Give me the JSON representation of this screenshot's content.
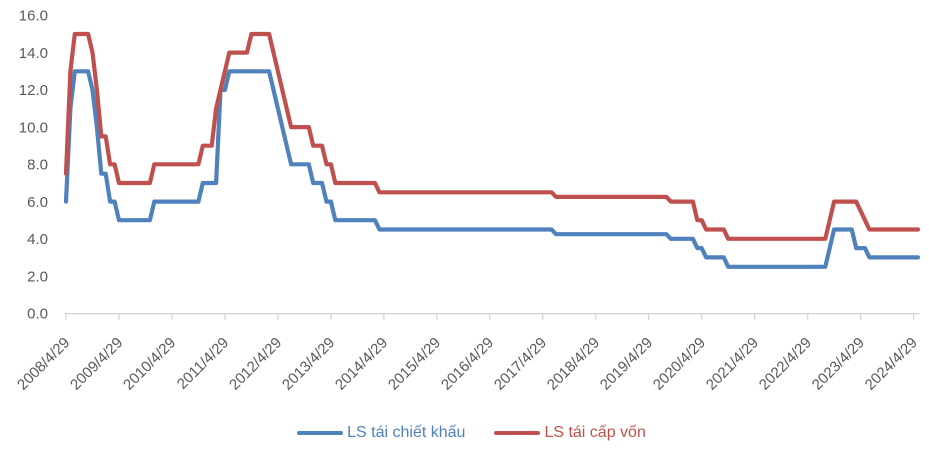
{
  "chart_data": {
    "type": "line",
    "title": "",
    "x_axis": {
      "tick_labels": [
        "2008/4/29",
        "2009/4/29",
        "2010/4/29",
        "2011/4/29",
        "2012/4/29",
        "2013/4/29",
        "2014/4/29",
        "2015/4/29",
        "2016/4/29",
        "2017/4/29",
        "2018/4/29",
        "2019/4/29",
        "2020/4/29",
        "2021/4/29",
        "2022/4/29",
        "2023/4/29",
        "2024/4/29"
      ],
      "points_per_tick": 12,
      "frequency": "monthly",
      "first_point": "2008/4/29",
      "last_point": "2024/5/29"
    },
    "y_axis": {
      "tick_labels": [
        "0.0",
        "2.0",
        "4.0",
        "6.0",
        "8.0",
        "10.0",
        "12.0",
        "14.0",
        "16.0"
      ],
      "min": 0,
      "max": 16
    },
    "grid": false,
    "legend_position": "bottom-center",
    "colors": {
      "axis": "#D6D6D6",
      "text": "#595959",
      "background": "#FFFFFF"
    },
    "series": [
      {
        "name": "LS tái chiết khấu",
        "color": "#4F81BD",
        "values": [
          6,
          11,
          13,
          13,
          13,
          13,
          12,
          10,
          7.5,
          7.5,
          6,
          6,
          5,
          5,
          5,
          5,
          5,
          5,
          5,
          5,
          6,
          6,
          6,
          6,
          6,
          6,
          6,
          6,
          6,
          6,
          6,
          7,
          7,
          7,
          7,
          12,
          12,
          13,
          13,
          13,
          13,
          13,
          13,
          13,
          13,
          13,
          13,
          12,
          11,
          10,
          9,
          8,
          8,
          8,
          8,
          8,
          7,
          7,
          7,
          6,
          6,
          5,
          5,
          5,
          5,
          5,
          5,
          5,
          5,
          5,
          5,
          4.5,
          4.5,
          4.5,
          4.5,
          4.5,
          4.5,
          4.5,
          4.5,
          4.5,
          4.5,
          4.5,
          4.5,
          4.5,
          4.5,
          4.5,
          4.5,
          4.5,
          4.5,
          4.5,
          4.5,
          4.5,
          4.5,
          4.5,
          4.5,
          4.5,
          4.5,
          4.5,
          4.5,
          4.5,
          4.5,
          4.5,
          4.5,
          4.5,
          4.5,
          4.5,
          4.5,
          4.5,
          4.5,
          4.5,
          4.5,
          4.25,
          4.25,
          4.25,
          4.25,
          4.25,
          4.25,
          4.25,
          4.25,
          4.25,
          4.25,
          4.25,
          4.25,
          4.25,
          4.25,
          4.25,
          4.25,
          4.25,
          4.25,
          4.25,
          4.25,
          4.25,
          4.25,
          4.25,
          4.25,
          4.25,
          4.25,
          4,
          4,
          4,
          4,
          4,
          4,
          3.5,
          3.5,
          3,
          3,
          3,
          3,
          3,
          2.5,
          2.5,
          2.5,
          2.5,
          2.5,
          2.5,
          2.5,
          2.5,
          2.5,
          2.5,
          2.5,
          2.5,
          2.5,
          2.5,
          2.5,
          2.5,
          2.5,
          2.5,
          2.5,
          2.5,
          2.5,
          2.5,
          2.5,
          3.5,
          4.5,
          4.5,
          4.5,
          4.5,
          4.5,
          3.5,
          3.5,
          3.5,
          3,
          3,
          3,
          3,
          3,
          3,
          3,
          3,
          3,
          3,
          3,
          3
        ]
      },
      {
        "name": "LS tái cấp vốn",
        "color": "#C0504D",
        "values": [
          7.5,
          13,
          15,
          15,
          15,
          15,
          14,
          12,
          9.5,
          9.5,
          8,
          8,
          7,
          7,
          7,
          7,
          7,
          7,
          7,
          7,
          8,
          8,
          8,
          8,
          8,
          8,
          8,
          8,
          8,
          8,
          8,
          9,
          9,
          9,
          11,
          12,
          13,
          14,
          14,
          14,
          14,
          14,
          15,
          15,
          15,
          15,
          15,
          14,
          13,
          12,
          11,
          10,
          10,
          10,
          10,
          10,
          9,
          9,
          9,
          8,
          8,
          7,
          7,
          7,
          7,
          7,
          7,
          7,
          7,
          7,
          7,
          6.5,
          6.5,
          6.5,
          6.5,
          6.5,
          6.5,
          6.5,
          6.5,
          6.5,
          6.5,
          6.5,
          6.5,
          6.5,
          6.5,
          6.5,
          6.5,
          6.5,
          6.5,
          6.5,
          6.5,
          6.5,
          6.5,
          6.5,
          6.5,
          6.5,
          6.5,
          6.5,
          6.5,
          6.5,
          6.5,
          6.5,
          6.5,
          6.5,
          6.5,
          6.5,
          6.5,
          6.5,
          6.5,
          6.5,
          6.5,
          6.25,
          6.25,
          6.25,
          6.25,
          6.25,
          6.25,
          6.25,
          6.25,
          6.25,
          6.25,
          6.25,
          6.25,
          6.25,
          6.25,
          6.25,
          6.25,
          6.25,
          6.25,
          6.25,
          6.25,
          6.25,
          6.25,
          6.25,
          6.25,
          6.25,
          6.25,
          6,
          6,
          6,
          6,
          6,
          6,
          5,
          5,
          4.5,
          4.5,
          4.5,
          4.5,
          4.5,
          4,
          4,
          4,
          4,
          4,
          4,
          4,
          4,
          4,
          4,
          4,
          4,
          4,
          4,
          4,
          4,
          4,
          4,
          4,
          4,
          4,
          4,
          4,
          5,
          6,
          6,
          6,
          6,
          6,
          6,
          5.5,
          5,
          4.5,
          4.5,
          4.5,
          4.5,
          4.5,
          4.5,
          4.5,
          4.5,
          4.5,
          4.5,
          4.5,
          4.5
        ]
      }
    ]
  }
}
